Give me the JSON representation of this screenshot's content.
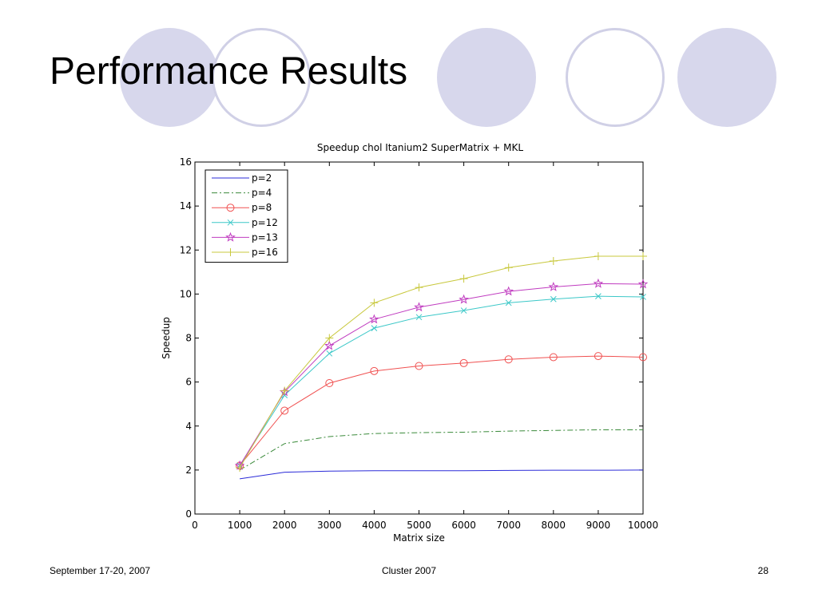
{
  "slide": {
    "title": "Performance Results",
    "footer_left": "September 17-20, 2007",
    "footer_center": "Cluster 2007",
    "footer_right": "28",
    "decor_fill": "#d7d7ec",
    "decor_stroke": "#d0d0e6"
  },
  "chart_data": {
    "type": "line",
    "title": "Speedup  chol  Itanium2 SuperMatrix + MKL",
    "xlabel": "Matrix size",
    "ylabel": "Speedup",
    "xlim": [
      0,
      10000
    ],
    "ylim": [
      0,
      16
    ],
    "xticks": [
      0,
      1000,
      2000,
      3000,
      4000,
      5000,
      6000,
      7000,
      8000,
      9000,
      10000
    ],
    "yticks": [
      0,
      2,
      4,
      6,
      8,
      10,
      12,
      14,
      16
    ],
    "grid": false,
    "legend_position": "top-left",
    "x": [
      1000,
      2000,
      3000,
      4000,
      5000,
      6000,
      7000,
      8000,
      9000,
      10000
    ],
    "series": [
      {
        "name": "p=2",
        "color": "#2b2bd8",
        "line": "solid",
        "marker": "none",
        "values": [
          1.6,
          1.9,
          1.95,
          1.97,
          1.97,
          1.97,
          1.98,
          1.99,
          1.99,
          2.0
        ]
      },
      {
        "name": "p=4",
        "color": "#3a8a3a",
        "line": "dashdot",
        "marker": "none",
        "values": [
          2.0,
          3.2,
          3.52,
          3.66,
          3.7,
          3.72,
          3.77,
          3.8,
          3.83,
          3.83
        ]
      },
      {
        "name": "p=8",
        "color": "#f05050",
        "line": "solid",
        "marker": "circle",
        "values": [
          2.2,
          4.7,
          5.95,
          6.5,
          6.73,
          6.86,
          7.03,
          7.13,
          7.18,
          7.13
        ]
      },
      {
        "name": "p=12",
        "color": "#3cc8c8",
        "line": "solid",
        "marker": "x",
        "values": [
          2.2,
          5.4,
          7.3,
          8.45,
          8.95,
          9.25,
          9.6,
          9.77,
          9.9,
          9.87
        ]
      },
      {
        "name": "p=13",
        "color": "#c03cc0",
        "line": "solid",
        "marker": "star",
        "values": [
          2.2,
          5.55,
          7.65,
          8.85,
          9.4,
          9.75,
          10.12,
          10.32,
          10.47,
          10.45
        ]
      },
      {
        "name": "p=16",
        "color": "#c8c83c",
        "line": "solid",
        "marker": "plus",
        "values": [
          2.1,
          5.6,
          8.0,
          9.6,
          10.3,
          10.7,
          11.2,
          11.5,
          11.72,
          11.72
        ]
      }
    ]
  }
}
